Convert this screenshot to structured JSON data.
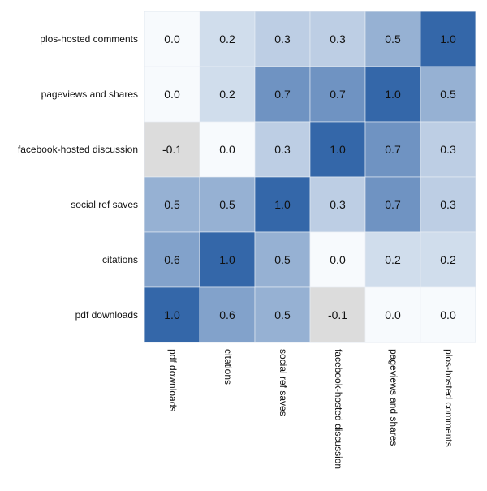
{
  "chart_data": {
    "type": "heatmap",
    "title": "",
    "xlabel": "",
    "ylabel": "",
    "columns": [
      "pdf downloads",
      "citations",
      "social ref saves",
      "facebook-hosted discussion",
      "pageviews and shares",
      "plos-hosted comments"
    ],
    "rows": [
      "plos-hosted comments",
      "pageviews and shares",
      "facebook-hosted discussion",
      "social ref saves",
      "citations",
      "pdf downloads"
    ],
    "values": [
      [
        0.0,
        0.2,
        0.3,
        0.3,
        0.5,
        1.0
      ],
      [
        0.0,
        0.2,
        0.7,
        0.7,
        1.0,
        0.5
      ],
      [
        -0.1,
        0.0,
        0.3,
        1.0,
        0.7,
        0.3
      ],
      [
        0.5,
        0.5,
        1.0,
        0.3,
        0.7,
        0.3
      ],
      [
        0.6,
        1.0,
        0.5,
        0.0,
        0.2,
        0.2
      ],
      [
        1.0,
        0.6,
        0.5,
        -0.1,
        0.0,
        0.0
      ]
    ],
    "value_format": "0.0",
    "color_scale": {
      "negative_color": "#dcdcdc",
      "zero_color": "#f7fafd",
      "max_color": "#3467a9"
    },
    "legend": "none",
    "grid": false
  }
}
